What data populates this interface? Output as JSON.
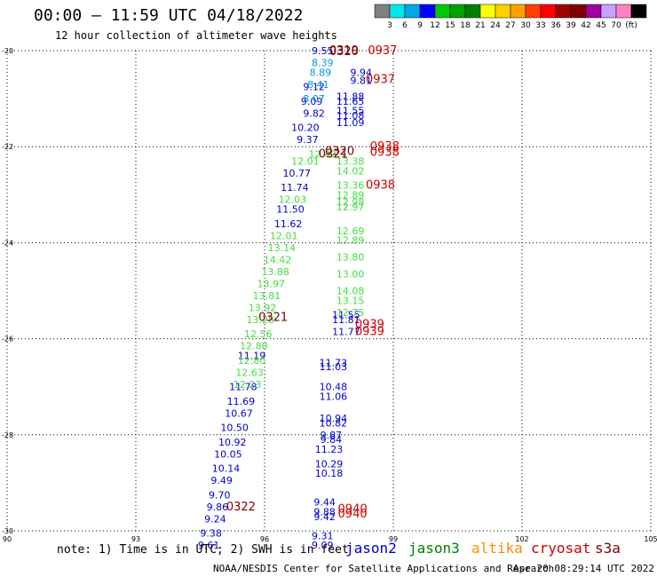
{
  "header": {
    "title": "00:00 – 11:59 UTC 04/18/2022",
    "subtitle": "12 hour collection of altimeter wave heights"
  },
  "colorbar": {
    "colors": [
      "#808080",
      "#00e8e8",
      "#00a8e8",
      "#0000ff",
      "#00c800",
      "#00a000",
      "#008000",
      "#ffff00",
      "#ffd000",
      "#ffa000",
      "#ff4000",
      "#ff0000",
      "#a00000",
      "#800000",
      "#a000a0",
      "#c8a0ff",
      "#ff80c0",
      "#000000"
    ],
    "labels": [
      "3",
      "6",
      "9",
      "12",
      "15",
      "18",
      "21",
      "24",
      "27",
      "30",
      "33",
      "36",
      "39",
      "42",
      "45",
      "70",
      "(ft)"
    ]
  },
  "missions": [
    {
      "name": "jason2",
      "color": "#0000cc"
    },
    {
      "name": "jason3",
      "color": "#008000"
    },
    {
      "name": "altika",
      "color": "#ff8c00"
    },
    {
      "name": "cryosat",
      "color": "#cc0000"
    },
    {
      "name": "s3a",
      "color": "#800000"
    }
  ],
  "footer": {
    "note": "note: 1) Time is in UTC; 2) SWH is in feet",
    "credit": "NOAA/NESDIS Center for Satellite Applications and Research",
    "timestamp": "Apr 20 08:29:14 UTC 2022"
  },
  "chart_data": {
    "type": "scatter",
    "title": "00:00 – 11:59 UTC 04/18/2022",
    "xlim": [
      90,
      105
    ],
    "ylim": [
      -30,
      -20
    ],
    "xticks": [
      90,
      93,
      96,
      99,
      102,
      105
    ],
    "yticks": [
      -20,
      -22,
      -24,
      -26,
      -28,
      -30
    ],
    "xtick_labels": [
      "90",
      "93",
      "96",
      "99",
      "102",
      "105"
    ],
    "ytick_labels": [
      "-20",
      "-22",
      "-24",
      "-26",
      "-28",
      "-30"
    ],
    "grid": true,
    "series": [
      {
        "name": "jason2",
        "color": "#0000cc",
        "points": [
          [
            97.35,
            -20.0,
            "9.55"
          ],
          [
            97.15,
            -20.75,
            "9.12"
          ],
          [
            97.1,
            -21.05,
            "9.09"
          ],
          [
            97.15,
            -21.3,
            "9.82"
          ],
          [
            96.95,
            -21.6,
            "10.20"
          ],
          [
            97.0,
            -21.85,
            "9.37"
          ],
          [
            96.75,
            -22.55,
            "10.77"
          ],
          [
            96.7,
            -22.85,
            "11.74"
          ],
          [
            96.6,
            -23.3,
            "11.50"
          ],
          [
            96.55,
            -23.6,
            "11.62"
          ],
          [
            98.25,
            -20.45,
            "9.94"
          ],
          [
            98.25,
            -20.62,
            "9.81"
          ],
          [
            98.0,
            -20.95,
            "11.88"
          ],
          [
            98.0,
            -21.05,
            "11.65"
          ],
          [
            98.0,
            -21.25,
            "11.55"
          ],
          [
            98.0,
            -21.35,
            "11.08"
          ],
          [
            98.0,
            -21.5,
            "11.09"
          ],
          [
            97.9,
            -25.5,
            "11.55"
          ],
          [
            97.9,
            -25.6,
            "11.81"
          ],
          [
            97.9,
            -25.85,
            "11.77"
          ],
          [
            95.7,
            -26.35,
            "11.19"
          ],
          [
            95.5,
            -27.0,
            "11.78"
          ],
          [
            95.45,
            -27.3,
            "11.69"
          ],
          [
            95.4,
            -27.55,
            "10.67"
          ],
          [
            95.3,
            -27.85,
            "10.50"
          ],
          [
            95.25,
            -28.15,
            "10.92"
          ],
          [
            95.15,
            -28.4,
            "10.05"
          ],
          [
            95.1,
            -28.7,
            "10.14"
          ],
          [
            95.0,
            -28.95,
            "9.49"
          ],
          [
            94.95,
            -29.25,
            "9.70"
          ],
          [
            94.9,
            -29.5,
            "9.86"
          ],
          [
            94.85,
            -29.75,
            "9.24"
          ],
          [
            94.75,
            -30.05,
            "9.38"
          ],
          [
            94.7,
            -30.3,
            "9.61"
          ],
          [
            97.6,
            -26.5,
            "11.73"
          ],
          [
            97.6,
            -26.58,
            "11.03"
          ],
          [
            97.6,
            -27.0,
            "10.48"
          ],
          [
            97.6,
            -27.2,
            "11.06"
          ],
          [
            97.6,
            -27.65,
            "10.94"
          ],
          [
            97.6,
            -27.75,
            "10.82"
          ],
          [
            97.55,
            -28.0,
            "9.87"
          ],
          [
            97.55,
            -28.1,
            "9.84"
          ],
          [
            97.5,
            -28.3,
            "11.23"
          ],
          [
            97.5,
            -28.6,
            "10.29"
          ],
          [
            97.5,
            -28.8,
            "10.18"
          ],
          [
            97.4,
            -29.4,
            "9.44"
          ],
          [
            97.4,
            -29.6,
            "9.88"
          ],
          [
            97.4,
            -29.7,
            "9.42"
          ],
          [
            97.35,
            -30.1,
            "9.31"
          ],
          [
            97.35,
            -30.3,
            "9.09"
          ]
        ]
      },
      {
        "name": "jason2_light",
        "color": "#0099dd",
        "points": [
          [
            97.35,
            -20.25,
            "8.39"
          ],
          [
            97.3,
            -20.45,
            "8.89"
          ],
          [
            97.25,
            -20.7,
            "8.41"
          ],
          [
            97.15,
            -21.0,
            "8.07"
          ]
        ]
      },
      {
        "name": "jason3",
        "color": "#44dd44",
        "points": [
          [
            96.95,
            -22.3,
            "12.01"
          ],
          [
            96.65,
            -23.1,
            "12.03"
          ],
          [
            96.45,
            -23.85,
            "12.01"
          ],
          [
            96.4,
            -24.1,
            "13.14"
          ],
          [
            96.3,
            -24.35,
            "14.42"
          ],
          [
            96.25,
            -24.6,
            "13.88"
          ],
          [
            96.15,
            -24.85,
            "13.97"
          ],
          [
            96.05,
            -25.1,
            "13.81"
          ],
          [
            95.95,
            -25.35,
            "13.92"
          ],
          [
            95.9,
            -25.6,
            "13.28"
          ],
          [
            95.85,
            -25.9,
            "12.56"
          ],
          [
            95.75,
            -26.15,
            "12.80"
          ],
          [
            95.7,
            -26.45,
            "12.80"
          ],
          [
            95.65,
            -26.7,
            "12.63"
          ],
          [
            95.6,
            -26.95,
            "12.23"
          ],
          [
            97.35,
            -22.15,
            "12.42"
          ],
          [
            98.0,
            -22.3,
            "13.38"
          ],
          [
            98.0,
            -22.5,
            "14.02"
          ],
          [
            98.0,
            -22.8,
            "13.36"
          ],
          [
            98.0,
            -23.0,
            "12.89"
          ],
          [
            98.0,
            -23.15,
            "12.98"
          ],
          [
            98.0,
            -23.25,
            "12.97"
          ],
          [
            98.0,
            -23.75,
            "12.69"
          ],
          [
            98.0,
            -23.95,
            "12.89"
          ],
          [
            98.0,
            -24.3,
            "13.80"
          ],
          [
            98.0,
            -24.65,
            "13.00"
          ],
          [
            98.0,
            -25.0,
            "14.08"
          ],
          [
            98.0,
            -25.2,
            "13.15"
          ],
          [
            98.0,
            -25.45,
            "12.75"
          ]
        ]
      },
      {
        "name": "cryosat",
        "color": "#cc0000",
        "points": [
          [
            98.75,
            -20.0,
            "0937"
          ],
          [
            98.7,
            -20.6,
            "0937"
          ],
          [
            98.8,
            -22.0,
            "0938"
          ],
          [
            98.8,
            -22.12,
            "0938"
          ],
          [
            98.7,
            -22.8,
            "0938"
          ],
          [
            98.45,
            -25.7,
            "0939"
          ],
          [
            98.45,
            -25.85,
            "0939"
          ],
          [
            98.05,
            -29.55,
            "0940"
          ],
          [
            98.05,
            -29.65,
            "0940"
          ]
        ]
      },
      {
        "name": "s3a",
        "color": "#800000",
        "points": [
          [
            97.85,
            -20.0,
            "0319"
          ],
          [
            97.85,
            -20.02,
            "0320"
          ],
          [
            97.75,
            -22.1,
            "0320"
          ],
          [
            97.6,
            -22.15,
            "0321"
          ],
          [
            96.2,
            -25.55,
            "0321"
          ],
          [
            95.45,
            -29.5,
            "0322"
          ]
        ]
      }
    ]
  }
}
